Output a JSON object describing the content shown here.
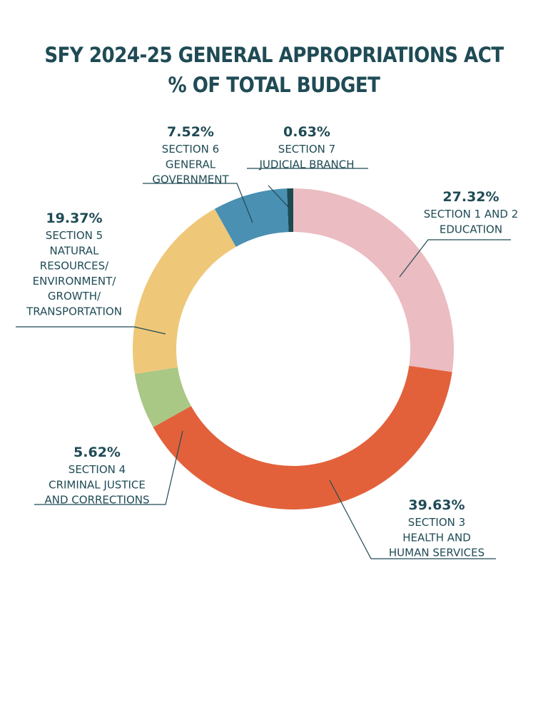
{
  "title": {
    "line1": "SFY 2024-25 GENERAL APPROPRIATIONS ACT",
    "line2": "% OF TOTAL BUDGET"
  },
  "chart_data": {
    "type": "pie",
    "subtype": "donut",
    "title": "SFY 2024-25 GENERAL APPROPRIATIONS ACT % OF TOTAL BUDGET",
    "slices": [
      {
        "percent": "27.32%",
        "value": 27.32,
        "label": [
          "SECTION 1 AND 2",
          "EDUCATION"
        ],
        "color": "#ebbcc1"
      },
      {
        "percent": "39.63%",
        "value": 39.63,
        "label": [
          "SECTION 3",
          "HEALTH AND",
          "HUMAN SERVICES"
        ],
        "color": "#e2613b"
      },
      {
        "percent": "5.62%",
        "value": 5.62,
        "label": [
          "SECTION 4",
          "CRIMINAL JUSTICE",
          "AND CORRECTIONS"
        ],
        "color": "#a9c785"
      },
      {
        "percent": "19.37%",
        "value": 19.37,
        "label": [
          "SECTION 5",
          "NATURAL",
          "RESOURCES/",
          "ENVIRONMENT/",
          "GROWTH/",
          "TRANSPORTATION"
        ],
        "color": "#eec878"
      },
      {
        "percent": "7.52%",
        "value": 7.52,
        "label": [
          "SECTION 6",
          "GENERAL",
          "GOVERNMENT"
        ],
        "color": "#4a90b2"
      },
      {
        "percent": "0.63%",
        "value": 0.63,
        "label": [
          "SECTION 7",
          "JUDICIAL BRANCH"
        ],
        "color": "#1b4a52"
      }
    ]
  }
}
